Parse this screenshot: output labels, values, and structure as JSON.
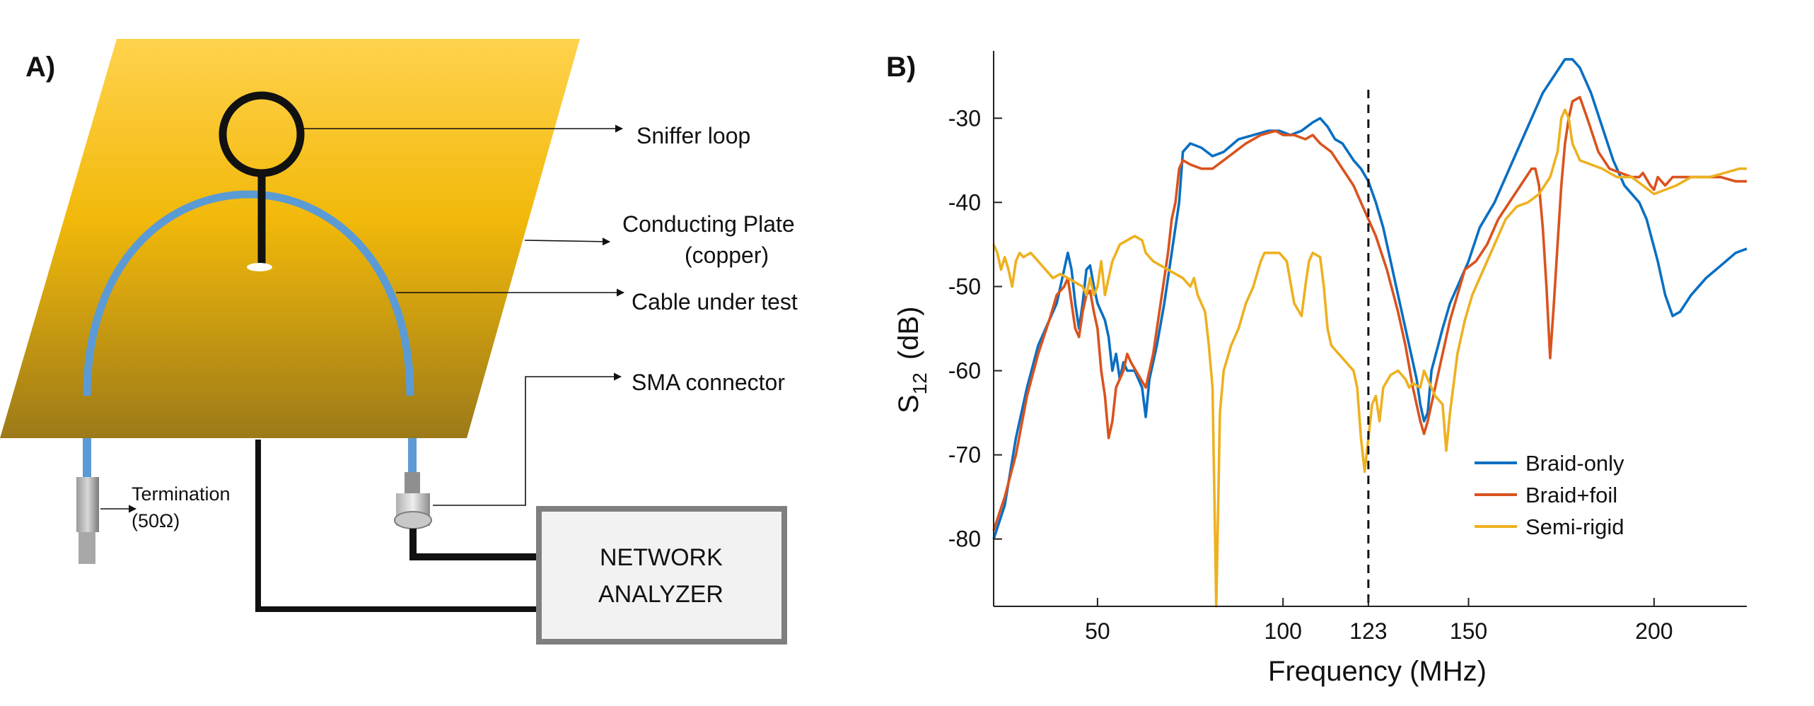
{
  "panel_a": {
    "label": "A)",
    "labels": {
      "sniffer_loop": "Sniffer loop",
      "plate_line1": "Conducting Plate",
      "plate_line2": "(copper)",
      "cable": "Cable under test",
      "sma": "SMA connector",
      "termination_line1": "Termination",
      "termination_line2": "(50Ω)",
      "analyzer_line1": "NETWORK",
      "analyzer_line2": "ANALYZER"
    },
    "colors": {
      "plate_top": "#ffd24d",
      "plate_mid": "#f2b90a",
      "plate_bottom": "#9c7a18",
      "cable": "#5b9bd5",
      "wire": "#111111"
    }
  },
  "panel_b": {
    "label": "B)",
    "marker_label": "123"
  },
  "chart_data": {
    "type": "line",
    "title": "",
    "xlabel": "Frequency (MHz)",
    "ylabel": "S12 (dB)",
    "ylabel_main": "S",
    "ylabel_sub": "12",
    "ylabel_unit": "(dB)",
    "xlim": [
      22,
      225
    ],
    "ylim": [
      -88,
      -22
    ],
    "xticks": [
      50,
      100,
      123,
      150,
      200
    ],
    "yticks": [
      -30,
      -40,
      -50,
      -60,
      -70,
      -80
    ],
    "vline": 123,
    "legend_position": "lower-right",
    "series": [
      {
        "name": "Braid-only",
        "color": "#0a6fc2",
        "points": [
          [
            22,
            -80
          ],
          [
            25,
            -76
          ],
          [
            28,
            -68
          ],
          [
            31,
            -62
          ],
          [
            34,
            -57
          ],
          [
            37,
            -54
          ],
          [
            39,
            -52
          ],
          [
            41,
            -48
          ],
          [
            42,
            -46
          ],
          [
            43,
            -48
          ],
          [
            44,
            -52
          ],
          [
            45,
            -55
          ],
          [
            46,
            -52
          ],
          [
            47,
            -48
          ],
          [
            48,
            -47.5
          ],
          [
            49,
            -50
          ],
          [
            50,
            -52
          ],
          [
            52,
            -54
          ],
          [
            53,
            -56
          ],
          [
            54,
            -60
          ],
          [
            55,
            -58
          ],
          [
            56,
            -61
          ],
          [
            57,
            -59
          ],
          [
            58,
            -60
          ],
          [
            60,
            -60
          ],
          [
            62,
            -62
          ],
          [
            63,
            -65.5
          ],
          [
            64,
            -61
          ],
          [
            66,
            -57
          ],
          [
            68,
            -52
          ],
          [
            70,
            -46
          ],
          [
            72,
            -40
          ],
          [
            73,
            -34
          ],
          [
            75,
            -33
          ],
          [
            78,
            -33.5
          ],
          [
            81,
            -34.5
          ],
          [
            84,
            -34
          ],
          [
            88,
            -32.5
          ],
          [
            92,
            -32
          ],
          [
            96,
            -31.5
          ],
          [
            99,
            -31.5
          ],
          [
            102,
            -32
          ],
          [
            105,
            -31.5
          ],
          [
            108,
            -30.5
          ],
          [
            110,
            -30
          ],
          [
            112,
            -31
          ],
          [
            114,
            -32.5
          ],
          [
            116,
            -33
          ],
          [
            119,
            -35
          ],
          [
            121,
            -36
          ],
          [
            123,
            -37.5
          ],
          [
            125,
            -40
          ],
          [
            127,
            -43
          ],
          [
            129,
            -47
          ],
          [
            131,
            -51
          ],
          [
            134,
            -57
          ],
          [
            136,
            -61
          ],
          [
            137,
            -64
          ],
          [
            138,
            -66
          ],
          [
            139,
            -65
          ],
          [
            140,
            -60
          ],
          [
            143,
            -55
          ],
          [
            145,
            -52
          ],
          [
            147,
            -50
          ],
          [
            150,
            -47
          ],
          [
            153,
            -43
          ],
          [
            157,
            -40
          ],
          [
            160,
            -37
          ],
          [
            163,
            -34
          ],
          [
            167,
            -30
          ],
          [
            170,
            -27
          ],
          [
            173,
            -25
          ],
          [
            176,
            -23
          ],
          [
            178,
            -23
          ],
          [
            180,
            -24
          ],
          [
            183,
            -27
          ],
          [
            186,
            -31
          ],
          [
            189,
            -35
          ],
          [
            192,
            -38
          ],
          [
            196,
            -40
          ],
          [
            198,
            -42
          ],
          [
            201,
            -47
          ],
          [
            203,
            -51
          ],
          [
            205,
            -53.5
          ],
          [
            207,
            -53
          ],
          [
            210,
            -51
          ],
          [
            214,
            -49
          ],
          [
            218,
            -47.5
          ],
          [
            222,
            -46
          ],
          [
            225,
            -45.5
          ]
        ]
      },
      {
        "name": "Braid+foil",
        "color": "#d9531e",
        "points": [
          [
            22,
            -79
          ],
          [
            25,
            -75
          ],
          [
            28,
            -70
          ],
          [
            31,
            -63
          ],
          [
            34,
            -58
          ],
          [
            37,
            -54
          ],
          [
            39,
            -51
          ],
          [
            41,
            -50
          ],
          [
            42,
            -49
          ],
          [
            43,
            -52
          ],
          [
            44,
            -55
          ],
          [
            45,
            -56
          ],
          [
            46,
            -53
          ],
          [
            47,
            -51
          ],
          [
            48,
            -50.5
          ],
          [
            49,
            -53
          ],
          [
            50,
            -55
          ],
          [
            51,
            -60
          ],
          [
            52,
            -63
          ],
          [
            53,
            -68
          ],
          [
            54,
            -66
          ],
          [
            55,
            -62
          ],
          [
            57,
            -60
          ],
          [
            58,
            -58
          ],
          [
            59,
            -59
          ],
          [
            61,
            -60.5
          ],
          [
            63,
            -62
          ],
          [
            65,
            -58
          ],
          [
            67,
            -52
          ],
          [
            69,
            -46
          ],
          [
            70,
            -42
          ],
          [
            71,
            -40
          ],
          [
            72,
            -36
          ],
          [
            73,
            -35
          ],
          [
            75,
            -35.5
          ],
          [
            78,
            -36
          ],
          [
            81,
            -36
          ],
          [
            84,
            -35
          ],
          [
            87,
            -34
          ],
          [
            90,
            -33
          ],
          [
            94,
            -32
          ],
          [
            98,
            -31.5
          ],
          [
            100,
            -32
          ],
          [
            103,
            -32
          ],
          [
            106,
            -32.5
          ],
          [
            108,
            -32
          ],
          [
            110,
            -33
          ],
          [
            113,
            -34
          ],
          [
            116,
            -36
          ],
          [
            119,
            -38
          ],
          [
            122,
            -41
          ],
          [
            125,
            -44
          ],
          [
            128,
            -48
          ],
          [
            131,
            -53
          ],
          [
            133,
            -57
          ],
          [
            135,
            -62
          ],
          [
            137,
            -66
          ],
          [
            138,
            -67.5
          ],
          [
            139,
            -66
          ],
          [
            141,
            -62
          ],
          [
            143,
            -58
          ],
          [
            145,
            -54
          ],
          [
            147,
            -51
          ],
          [
            149,
            -48
          ],
          [
            152,
            -47
          ],
          [
            155,
            -45
          ],
          [
            158,
            -42
          ],
          [
            161,
            -40
          ],
          [
            164,
            -38
          ],
          [
            167,
            -36
          ],
          [
            168,
            -36
          ],
          [
            169,
            -38
          ],
          [
            170,
            -43
          ],
          [
            171,
            -50
          ],
          [
            172,
            -58.5
          ],
          [
            173,
            -52
          ],
          [
            174,
            -45
          ],
          [
            175,
            -38
          ],
          [
            176,
            -33
          ],
          [
            177,
            -30
          ],
          [
            178,
            -28
          ],
          [
            180,
            -27.5
          ],
          [
            182,
            -30
          ],
          [
            185,
            -34
          ],
          [
            188,
            -36
          ],
          [
            191,
            -36.5
          ],
          [
            194,
            -37
          ],
          [
            196,
            -37
          ],
          [
            197,
            -36.5
          ],
          [
            199,
            -38
          ],
          [
            200,
            -38.5
          ],
          [
            201,
            -37
          ],
          [
            203,
            -38
          ],
          [
            205,
            -37
          ],
          [
            207,
            -37
          ],
          [
            210,
            -37
          ],
          [
            214,
            -37
          ],
          [
            218,
            -37
          ],
          [
            222,
            -37.5
          ],
          [
            225,
            -37.5
          ]
        ]
      },
      {
        "name": "Semi-rigid",
        "color": "#edb120",
        "points": [
          [
            22,
            -45
          ],
          [
            23,
            -46
          ],
          [
            24,
            -48
          ],
          [
            25,
            -46.5
          ],
          [
            26,
            -48
          ],
          [
            27,
            -50
          ],
          [
            28,
            -47
          ],
          [
            29,
            -46
          ],
          [
            30,
            -46.5
          ],
          [
            32,
            -46
          ],
          [
            34,
            -47
          ],
          [
            36,
            -48
          ],
          [
            38,
            -49
          ],
          [
            40,
            -48.5
          ],
          [
            42,
            -49
          ],
          [
            44,
            -49.5
          ],
          [
            46,
            -50
          ],
          [
            47,
            -51
          ],
          [
            48,
            -49
          ],
          [
            49,
            -51
          ],
          [
            50,
            -50
          ],
          [
            51,
            -47
          ],
          [
            52,
            -51
          ],
          [
            53,
            -49
          ],
          [
            54,
            -47
          ],
          [
            56,
            -45
          ],
          [
            58,
            -44.5
          ],
          [
            60,
            -44
          ],
          [
            62,
            -44.5
          ],
          [
            63,
            -46
          ],
          [
            65,
            -47
          ],
          [
            67,
            -47.5
          ],
          [
            69,
            -48
          ],
          [
            71,
            -48.5
          ],
          [
            73,
            -49
          ],
          [
            75,
            -50
          ],
          [
            76,
            -49
          ],
          [
            77,
            -51
          ],
          [
            79,
            -53
          ],
          [
            80,
            -57
          ],
          [
            81,
            -62
          ],
          [
            82,
            -88
          ],
          [
            83,
            -65
          ],
          [
            84,
            -60
          ],
          [
            86,
            -57
          ],
          [
            88,
            -55
          ],
          [
            90,
            -52
          ],
          [
            92,
            -50
          ],
          [
            94,
            -47
          ],
          [
            95,
            -46
          ],
          [
            97,
            -46
          ],
          [
            99,
            -46
          ],
          [
            101,
            -47
          ],
          [
            103,
            -52
          ],
          [
            105,
            -53.5
          ],
          [
            106,
            -50
          ],
          [
            107,
            -47
          ],
          [
            108,
            -46
          ],
          [
            110,
            -46.5
          ],
          [
            111,
            -50
          ],
          [
            112,
            -55
          ],
          [
            113,
            -57
          ],
          [
            115,
            -58
          ],
          [
            117,
            -59
          ],
          [
            119,
            -60
          ],
          [
            120,
            -62
          ],
          [
            121,
            -68
          ],
          [
            122,
            -72
          ],
          [
            123,
            -68
          ],
          [
            124,
            -64
          ],
          [
            125,
            -63
          ],
          [
            126,
            -66
          ],
          [
            127,
            -62
          ],
          [
            129,
            -60.5
          ],
          [
            131,
            -60
          ],
          [
            133,
            -61
          ],
          [
            134,
            -62
          ],
          [
            135,
            -61.5
          ],
          [
            137,
            -62
          ],
          [
            138,
            -60
          ],
          [
            140,
            -62
          ],
          [
            141,
            -63
          ],
          [
            143,
            -64
          ],
          [
            144,
            -69.5
          ],
          [
            145,
            -65
          ],
          [
            147,
            -58
          ],
          [
            149,
            -54
          ],
          [
            151,
            -51
          ],
          [
            154,
            -48
          ],
          [
            157,
            -45
          ],
          [
            160,
            -42
          ],
          [
            163,
            -40.5
          ],
          [
            166,
            -40
          ],
          [
            169,
            -39
          ],
          [
            172,
            -37
          ],
          [
            174,
            -34
          ],
          [
            175,
            -30
          ],
          [
            176,
            -29
          ],
          [
            177,
            -30
          ],
          [
            178,
            -33
          ],
          [
            180,
            -35
          ],
          [
            183,
            -35.5
          ],
          [
            186,
            -36
          ],
          [
            190,
            -37
          ],
          [
            194,
            -37
          ],
          [
            197,
            -38
          ],
          [
            200,
            -39
          ],
          [
            203,
            -38.5
          ],
          [
            206,
            -38
          ],
          [
            210,
            -37
          ],
          [
            215,
            -37
          ],
          [
            219,
            -36.5
          ],
          [
            223,
            -36
          ],
          [
            225,
            -36
          ]
        ]
      }
    ]
  }
}
